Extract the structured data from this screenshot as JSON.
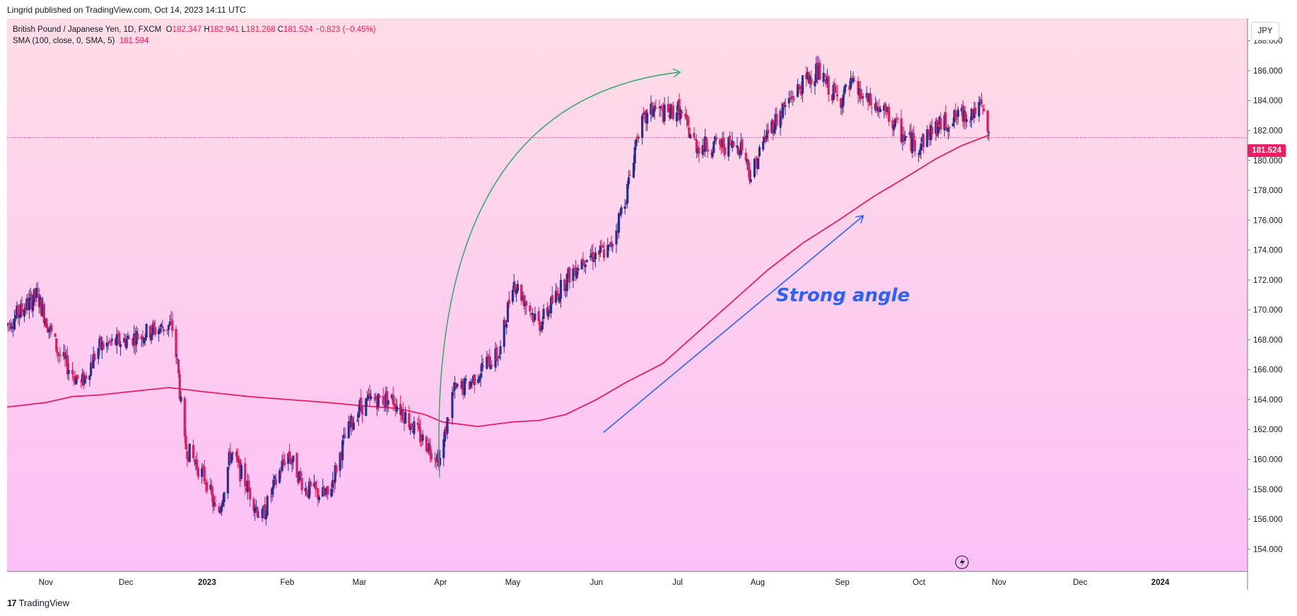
{
  "header": {
    "publisher_line": "Lingrid published on TradingView.com, Oct 14, 2023 14:11 UTC"
  },
  "legend": {
    "title": "British Pound / Japanese Yen, 1D, FXCM",
    "open_label": "O",
    "open": "182.347",
    "high_label": "H",
    "high": "182.941",
    "low_label": "L",
    "low": "181.268",
    "close_label": "C",
    "close": "181.524",
    "change": "−0.823 (−0.45%)",
    "sma_label": "SMA (100, close, 0, SMA, 5)",
    "sma_value": "181.594"
  },
  "price_axis": {
    "currency": "JPY",
    "current_price_badge": "181.524"
  },
  "footer": {
    "brand": "TradingView",
    "mark": "17"
  },
  "colors": {
    "bg_top": "#ffdde6",
    "bg_bottom": "#fcc0f6",
    "up": "#2a2e8f",
    "down": "#d6205f",
    "sma": "#e91e63",
    "green_arrow": "#3aab73",
    "blue_arrow": "#2962ff",
    "badge": "#e91e63"
  },
  "chart_data": {
    "type": "candlestick",
    "symbol": "GBPJPY",
    "title": "British Pound / Japanese Yen, 1D, FXCM",
    "ylim": [
      152.5,
      189.5
    ],
    "y_ticks": [
      "188.000",
      "186.000",
      "184.000",
      "182.000",
      "180.000",
      "178.000",
      "176.000",
      "174.000",
      "172.000",
      "170.000",
      "168.000",
      "166.000",
      "164.000",
      "162.000",
      "160.000",
      "158.000",
      "156.000",
      "154.000"
    ],
    "x_ticks": [
      "Nov",
      "Dec",
      "2023",
      "Feb",
      "Mar",
      "Apr",
      "May",
      "Jun",
      "Jul",
      "Aug",
      "Sep",
      "Oct",
      "Nov",
      "Dec",
      "2024"
    ],
    "x_tick_days": [
      0,
      91,
      183,
      274,
      356,
      448,
      530,
      625,
      717,
      808,
      904,
      991,
      1082,
      1174,
      1265
    ],
    "x_days_range": [
      -44,
      1364
    ],
    "last_close": 181.524,
    "sma_period": 100,
    "sma_points": [
      [
        -44,
        163.5
      ],
      [
        0,
        163.8
      ],
      [
        30,
        164.2
      ],
      [
        60,
        164.3
      ],
      [
        91,
        164.5
      ],
      [
        140,
        164.8
      ],
      [
        183,
        164.5
      ],
      [
        230,
        164.2
      ],
      [
        274,
        164.0
      ],
      [
        320,
        163.8
      ],
      [
        356,
        163.6
      ],
      [
        400,
        163.4
      ],
      [
        430,
        163.0
      ],
      [
        450,
        162.5
      ],
      [
        490,
        162.2
      ],
      [
        530,
        162.5
      ],
      [
        560,
        162.6
      ],
      [
        590,
        163.0
      ],
      [
        625,
        164.0
      ],
      [
        660,
        165.2
      ],
      [
        700,
        166.4
      ],
      [
        740,
        168.5
      ],
      [
        780,
        170.6
      ],
      [
        820,
        172.7
      ],
      [
        860,
        174.5
      ],
      [
        900,
        176.0
      ],
      [
        940,
        177.6
      ],
      [
        980,
        179.0
      ],
      [
        1010,
        180.1
      ],
      [
        1040,
        181.0
      ],
      [
        1071,
        181.7
      ]
    ],
    "candle_anchors": [
      [
        -44,
        169.0
      ],
      [
        -10,
        171.0
      ],
      [
        15,
        167.0
      ],
      [
        40,
        165.0
      ],
      [
        60,
        167.5
      ],
      [
        91,
        168.0
      ],
      [
        115,
        168.5
      ],
      [
        143,
        169.0
      ],
      [
        150,
        166.0
      ],
      [
        157,
        161.0
      ],
      [
        183,
        158.5
      ],
      [
        195,
        156.0
      ],
      [
        210,
        160.5
      ],
      [
        230,
        158.0
      ],
      [
        245,
        156.0
      ],
      [
        274,
        160.5
      ],
      [
        295,
        158.0
      ],
      [
        320,
        157.5
      ],
      [
        340,
        161.5
      ],
      [
        356,
        163.5
      ],
      [
        372,
        164.0
      ],
      [
        395,
        164.0
      ],
      [
        425,
        161.5
      ],
      [
        448,
        160.0
      ],
      [
        462,
        164.5
      ],
      [
        480,
        165.0
      ],
      [
        500,
        166.5
      ],
      [
        515,
        167.0
      ],
      [
        530,
        172.0
      ],
      [
        560,
        169.0
      ],
      [
        590,
        172.0
      ],
      [
        610,
        173.5
      ],
      [
        640,
        174.0
      ],
      [
        660,
        178.0
      ],
      [
        672,
        182.0
      ],
      [
        690,
        183.5
      ],
      [
        705,
        183.0
      ],
      [
        717,
        183.5
      ],
      [
        738,
        181.0
      ],
      [
        760,
        181.0
      ],
      [
        790,
        181.0
      ],
      [
        800,
        179.0
      ],
      [
        820,
        182.0
      ],
      [
        850,
        184.5
      ],
      [
        874,
        186.0
      ],
      [
        900,
        184.0
      ],
      [
        915,
        185.0
      ],
      [
        930,
        184.0
      ],
      [
        955,
        183.0
      ],
      [
        975,
        181.5
      ],
      [
        991,
        181.0
      ],
      [
        1005,
        182.0
      ],
      [
        1020,
        182.5
      ],
      [
        1040,
        183.0
      ],
      [
        1062,
        183.5
      ],
      [
        1071,
        181.5
      ]
    ],
    "annotations": [
      {
        "type": "text",
        "text": "Strong angle",
        "color": "#2962ff"
      },
      {
        "type": "curved-arrow",
        "color": "#3aab73",
        "from": [
          447,
          158.8
        ],
        "to": [
          720,
          185.9
        ]
      },
      {
        "type": "arrow",
        "color": "#2962ff",
        "from": [
          633,
          161.8
        ],
        "to": [
          928,
          176.3
        ]
      }
    ]
  }
}
